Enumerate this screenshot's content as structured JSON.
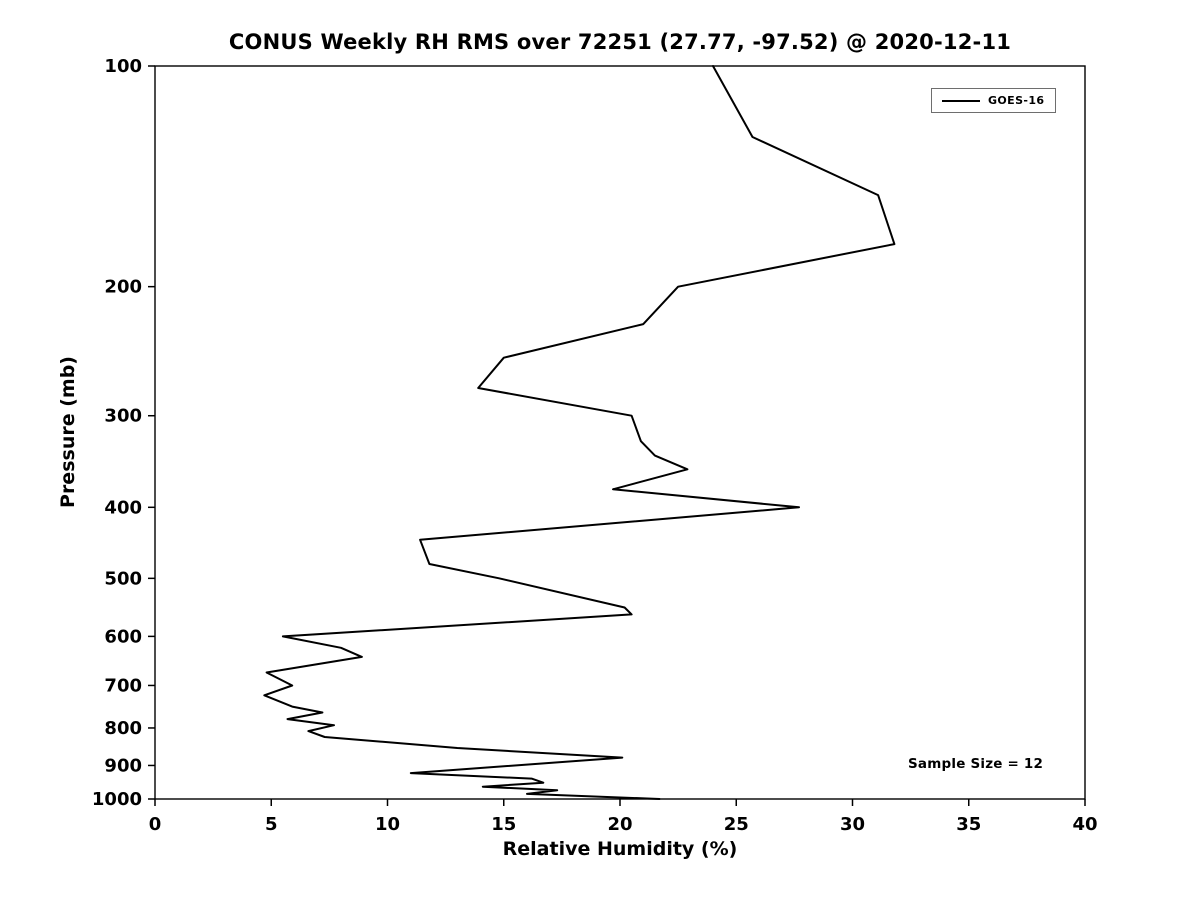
{
  "figure": {
    "background": "#ffffff",
    "line_color": "#000000"
  },
  "chart_data": {
    "type": "line",
    "title": "CONUS Weekly RH RMS over 72251 (27.77, -97.52) @ 2020-12-11",
    "xlabel": "Relative Humidity (%)",
    "ylabel": "Pressure (mb)",
    "xlim": [
      0,
      40
    ],
    "x_ticks": [
      0,
      5,
      10,
      15,
      20,
      25,
      30,
      35,
      40
    ],
    "ylim": [
      100,
      1000
    ],
    "y_scale": "log",
    "y_direction": "pressure-increasing-downward",
    "y_ticks": [
      100,
      200,
      300,
      400,
      500,
      600,
      700,
      800,
      900,
      1000
    ],
    "grid": false,
    "legend": {
      "position": "upper-right",
      "entries": [
        {
          "label": "GOES-16",
          "color": "#000000"
        }
      ]
    },
    "annotation": "Sample Size = 12",
    "series": [
      {
        "name": "GOES-16",
        "color": "#000000",
        "line_width": 2,
        "points_format": [
          "pressure_mb",
          "rh_rms_percent"
        ],
        "points": [
          [
            100,
            24.0
          ],
          [
            125,
            25.7
          ],
          [
            150,
            31.1
          ],
          [
            175,
            31.8
          ],
          [
            200,
            22.5
          ],
          [
            225,
            21.0
          ],
          [
            250,
            15.0
          ],
          [
            275,
            13.9
          ],
          [
            300,
            20.5
          ],
          [
            325,
            20.9
          ],
          [
            340,
            21.5
          ],
          [
            355,
            22.9
          ],
          [
            378,
            19.7
          ],
          [
            400,
            27.7
          ],
          [
            443,
            11.4
          ],
          [
            478,
            11.8
          ],
          [
            500,
            14.8
          ],
          [
            548,
            20.2
          ],
          [
            560,
            20.5
          ],
          [
            600,
            5.5
          ],
          [
            622,
            8.0
          ],
          [
            640,
            8.9
          ],
          [
            672,
            4.8
          ],
          [
            700,
            5.9
          ],
          [
            722,
            4.7
          ],
          [
            748,
            5.9
          ],
          [
            762,
            7.2
          ],
          [
            778,
            5.7
          ],
          [
            793,
            7.7
          ],
          [
            808,
            6.6
          ],
          [
            823,
            7.3
          ],
          [
            852,
            13.0
          ],
          [
            878,
            20.1
          ],
          [
            922,
            11.0
          ],
          [
            938,
            16.2
          ],
          [
            950,
            16.7
          ],
          [
            962,
            14.1
          ],
          [
            973,
            17.3
          ],
          [
            984,
            16.0
          ],
          [
            1000,
            21.7
          ]
        ]
      }
    ]
  }
}
